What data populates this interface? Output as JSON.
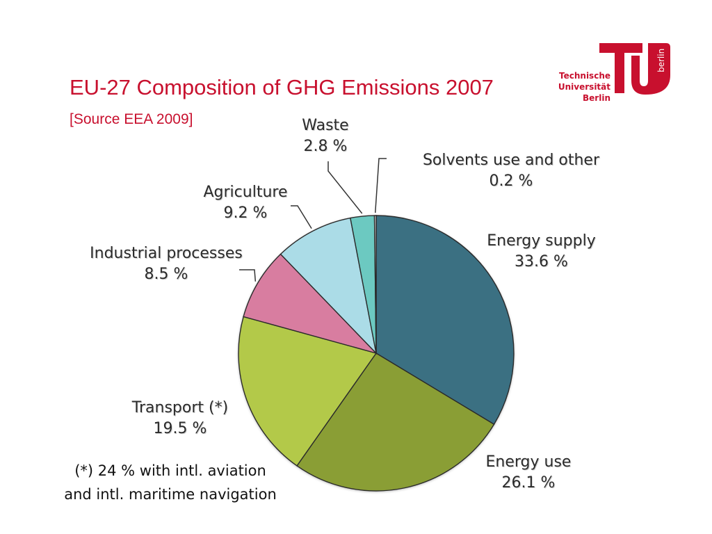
{
  "header": {
    "title": "EU-27 Composition of GHG Emissions 2007",
    "source": "[Source EEA 2009]"
  },
  "logo": {
    "line1": "Technische",
    "line2": "Universität",
    "line3": "Berlin",
    "mark_text": "berlin",
    "color": "#c8102e"
  },
  "chart_data": {
    "type": "pie",
    "title": "EU-27 Composition of GHG Emissions 2007",
    "subtitle": "[Source EEA 2009]",
    "slices": [
      {
        "label": "Energy supply",
        "value": 33.6,
        "display": "33.6 %",
        "color": "#3a6f82"
      },
      {
        "label": "Energy use",
        "value": 26.1,
        "display": "26.1 %",
        "color": "#8a9e36"
      },
      {
        "label": "Transport (*)",
        "value": 19.5,
        "display": "19.5 %",
        "color": "#b3c94a"
      },
      {
        "label": "Industrial processes",
        "value": 8.5,
        "display": "8.5 %",
        "color": "#d87da0"
      },
      {
        "label": "Agriculture",
        "value": 9.2,
        "display": "9.2 %",
        "color": "#abdce7"
      },
      {
        "label": "Waste",
        "value": 2.8,
        "display": "2.8 %",
        "color": "#6cc9c1"
      },
      {
        "label": "Solvents use and other",
        "value": 0.2,
        "display": "0.2 %",
        "color": "#e0e0e0"
      }
    ]
  },
  "footnote": {
    "line1": "(*) 24 % with intl. aviation",
    "line2": "and intl. maritime navigation"
  }
}
